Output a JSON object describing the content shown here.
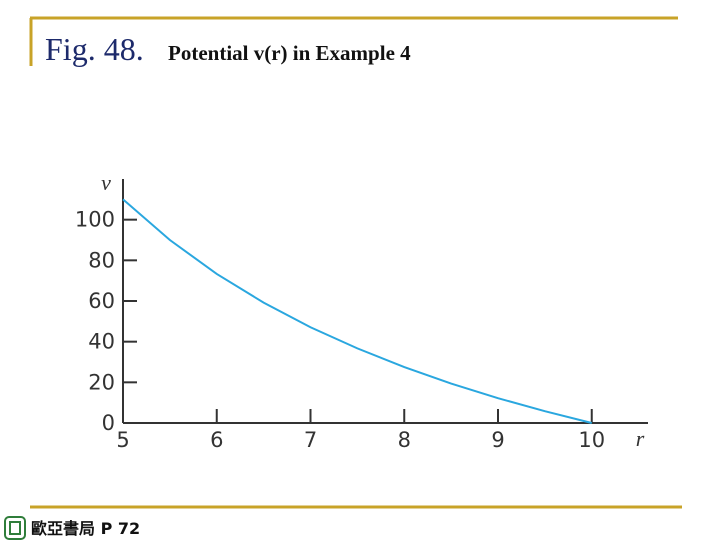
{
  "header": {
    "figure": "Fig. 48.",
    "title": "Potential v(r) in Example 4"
  },
  "chart_data": {
    "type": "line",
    "x_label": "r",
    "y_label": "v",
    "x": [
      5,
      5.5,
      6,
      6.5,
      7,
      7.5,
      8,
      8.5,
      9,
      9.5,
      10
    ],
    "series": [
      {
        "color": "#2aa7df",
        "values": [
          110,
          90,
          73.3,
          59.2,
          47.1,
          36.7,
          27.5,
          19.4,
          12.2,
          5.8,
          0
        ]
      }
    ],
    "xlim": [
      5,
      10.6
    ],
    "ylim": [
      0,
      120
    ],
    "xticks": [
      5,
      6,
      7,
      8,
      9,
      10
    ],
    "yticks": [
      0,
      20,
      40,
      60,
      80,
      100
    ]
  },
  "footer": {
    "text": "歐亞書局 P 72"
  }
}
